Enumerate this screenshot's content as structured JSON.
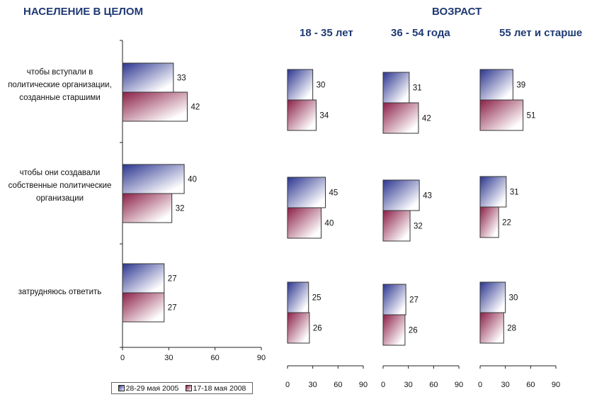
{
  "header": {
    "title": "НАСЕЛЕНИЕ В ЦЕЛОМ",
    "age_title": "ВОЗРАСТ",
    "age_columns": [
      "18 - 35 лет",
      "36 - 54 года",
      "55 лет и старше"
    ]
  },
  "legend": {
    "items": [
      "28-29 мая 2005",
      "17-18 мая 2008"
    ]
  },
  "colors": {
    "series_2005": "#2c3590",
    "series_2008": "#8b1f47",
    "header_text": "#1f3a73"
  },
  "chart_data": {
    "type": "bar",
    "orientation": "horizontal",
    "categories": [
      "чтобы вступали в политические организации, созданные старшими",
      "чтобы они создавали собственные политические организации",
      "затрудняюсь ответить"
    ],
    "category_lines": [
      [
        "чтобы вступали в",
        "политические организации,",
        "созданные старшими"
      ],
      [
        "чтобы они создавали",
        "собственные политические",
        "организации"
      ],
      [
        "затрудняюсь ответить"
      ]
    ],
    "series_names": [
      "28-29 мая 2005",
      "17-18 мая 2008"
    ],
    "xlim": [
      0,
      90
    ],
    "xticks": [
      0,
      30,
      60,
      90
    ],
    "panels": [
      {
        "title": "НАСЕЛЕНИЕ В ЦЕЛОМ",
        "values": [
          [
            33,
            42
          ],
          [
            40,
            32
          ],
          [
            27,
            27
          ]
        ]
      },
      {
        "title": "18 - 35 лет",
        "values": [
          [
            30,
            34
          ],
          [
            45,
            40
          ],
          [
            25,
            26
          ]
        ]
      },
      {
        "title": "36 - 54 года",
        "values": [
          [
            31,
            42
          ],
          [
            43,
            32
          ],
          [
            27,
            26
          ]
        ]
      },
      {
        "title": "55 лет и старше",
        "values": [
          [
            39,
            51
          ],
          [
            31,
            22
          ],
          [
            30,
            28
          ]
        ]
      }
    ]
  }
}
